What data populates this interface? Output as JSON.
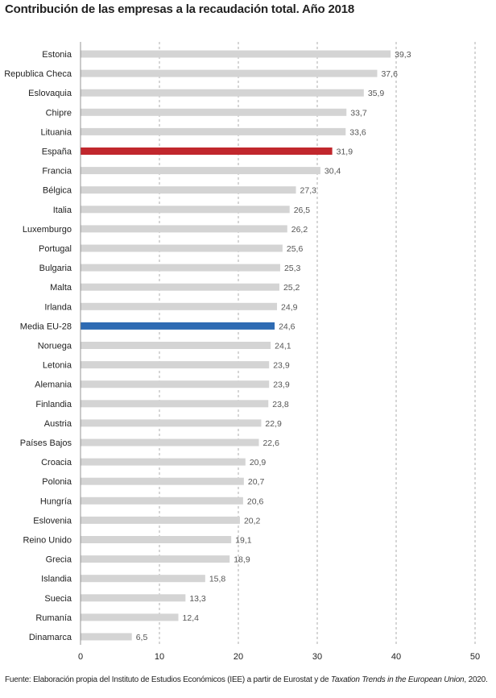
{
  "title": "Contribución de las empresas a la recaudación total. Año 2018",
  "source": {
    "prefix": "Fuente: Elaboración propia del Instituto de Estudios Económicos (IEE) a partir de Eurostat y de ",
    "italic": "Taxation Trends in the European Union",
    "suffix": ", 2020."
  },
  "chart_data": {
    "type": "bar",
    "orientation": "horizontal",
    "title": "Contribución de las empresas a la recaudación total. Año 2018",
    "xlabel": "",
    "ylabel": "",
    "xlim": [
      0,
      50
    ],
    "xticks": [
      "0",
      "10",
      "20",
      "30",
      "40",
      "50"
    ],
    "grid": "vertical dashed",
    "colors": {
      "default": "#d4d4d4",
      "highlight_spain": "#c1272d",
      "highlight_eu": "#2e6bb3"
    },
    "categories": [
      "Estonia",
      "Republica Checa",
      "Eslovaquia",
      "Chipre",
      "Lituania",
      "España",
      "Francia",
      "Bélgica",
      "Italia",
      "Luxemburgo",
      "Portugal",
      "Bulgaria",
      "Malta",
      "Irlanda",
      "Media EU-28",
      "Noruega",
      "Letonia",
      "Alemania",
      "Finlandia",
      "Austria",
      "Países Bajos",
      "Croacia",
      "Polonia",
      "Hungría",
      "Eslovenia",
      "Reino Unido",
      "Grecia",
      "Islandia",
      "Suecia",
      "Rumanía",
      "Dinamarca"
    ],
    "values": [
      39.3,
      37.6,
      35.9,
      33.7,
      33.6,
      31.9,
      30.4,
      27.3,
      26.5,
      26.2,
      25.6,
      25.3,
      25.2,
      24.9,
      24.6,
      24.1,
      23.9,
      23.9,
      23.8,
      22.9,
      22.6,
      20.9,
      20.7,
      20.6,
      20.2,
      19.1,
      18.9,
      15.8,
      13.3,
      12.4,
      6.5
    ],
    "labels": [
      "39,3",
      "37,6",
      "35,9",
      "33,7",
      "33,6",
      "31,9",
      "30,4",
      "27,3",
      "26,5",
      "26,2",
      "25,6",
      "25,3",
      "25,2",
      "24,9",
      "24,6",
      "24,1",
      "23,9",
      "23,9",
      "23,8",
      "22,9",
      "22,6",
      "20,9",
      "20,7",
      "20,6",
      "20,2",
      "19,1",
      "18,9",
      "15,8",
      "13,3",
      "12,4",
      "6,5"
    ],
    "highlight": {
      "España": "highlight_spain",
      "Media EU-28": "highlight_eu"
    }
  }
}
